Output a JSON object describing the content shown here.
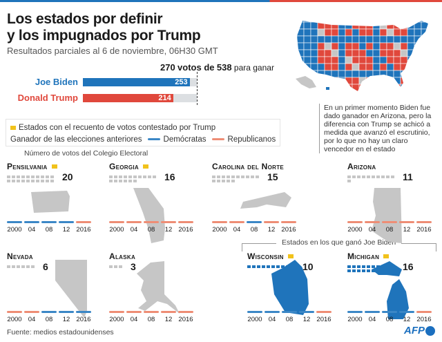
{
  "title_line1": "Los estados por definir",
  "title_line2": "y los impugnados por Trump",
  "subtitle": "Resultados parciales al 6 de noviembre, 06H30 GMT",
  "goal": {
    "num": "270",
    "mid": "votos de",
    "total": "538",
    "suffix": "para ganar"
  },
  "colors": {
    "dem": "#1f74bb",
    "rep": "#e0483c",
    "dem_hist": "#3b87c6",
    "rep_hist": "#ee8d75",
    "contested": "#f1c21b",
    "neutral": "#c6c6c6"
  },
  "chart_data": {
    "type": "bar",
    "title": "Votos del Colegio Electoral",
    "categories": [
      "Joe Biden",
      "Donald Trump"
    ],
    "values": [
      253,
      214
    ],
    "xlim": [
      0,
      270
    ],
    "threshold": 270,
    "total": 538
  },
  "candidates": [
    {
      "name": "Joe Biden",
      "votes": "253"
    },
    {
      "name": "Donald Trump",
      "votes": "214"
    }
  ],
  "legend": {
    "contested": "Estados con el recuento de votos contestado por Trump",
    "previous": "Ganador de las elecciones anteriores",
    "dem": "Demócratas",
    "rep": "Republicanos"
  },
  "note": "En un primer momento Biden fue dado ganador en Arizona, pero la diferencia con Trump se achicó a medida que avanzó el escrutinio, por lo que no hay un claro vencedor en el estado",
  "colegio_note": "Número de votos del Colegio Electoral",
  "biden_states_label": "Estados en los que ganó Joe Biden",
  "years": [
    "2000",
    "04",
    "08",
    "12",
    "2016"
  ],
  "states": [
    {
      "name": "Pensilvania",
      "votes": "20",
      "contested": true,
      "winner": "none",
      "history": [
        "D",
        "D",
        "D",
        "D",
        "R"
      ]
    },
    {
      "name": "Georgia",
      "votes": "16",
      "contested": true,
      "winner": "none",
      "history": [
        "R",
        "R",
        "R",
        "R",
        "R"
      ]
    },
    {
      "name": "Carolina del Norte",
      "votes": "15",
      "contested": false,
      "winner": "none",
      "history": [
        "R",
        "R",
        "D",
        "R",
        "R"
      ]
    },
    {
      "name": "Arizona",
      "votes": "11",
      "contested": false,
      "winner": "none",
      "history": [
        "R",
        "R",
        "R",
        "R",
        "R"
      ]
    },
    {
      "name": "Nevada",
      "votes": "6",
      "contested": false,
      "winner": "none",
      "history": [
        "R",
        "R",
        "D",
        "D",
        "D"
      ]
    },
    {
      "name": "Alaska",
      "votes": "3",
      "contested": false,
      "winner": "none",
      "history": [
        "R",
        "R",
        "R",
        "R",
        "R"
      ]
    },
    {
      "name": "Wisconsin",
      "votes": "10",
      "contested": true,
      "winner": "D",
      "history": [
        "D",
        "D",
        "D",
        "D",
        "R"
      ]
    },
    {
      "name": "Michigan",
      "votes": "16",
      "contested": true,
      "winner": "D",
      "history": [
        "D",
        "D",
        "D",
        "D",
        "R"
      ]
    }
  ],
  "source": "Fuente: medios estadounidenses",
  "logo": "AFP"
}
